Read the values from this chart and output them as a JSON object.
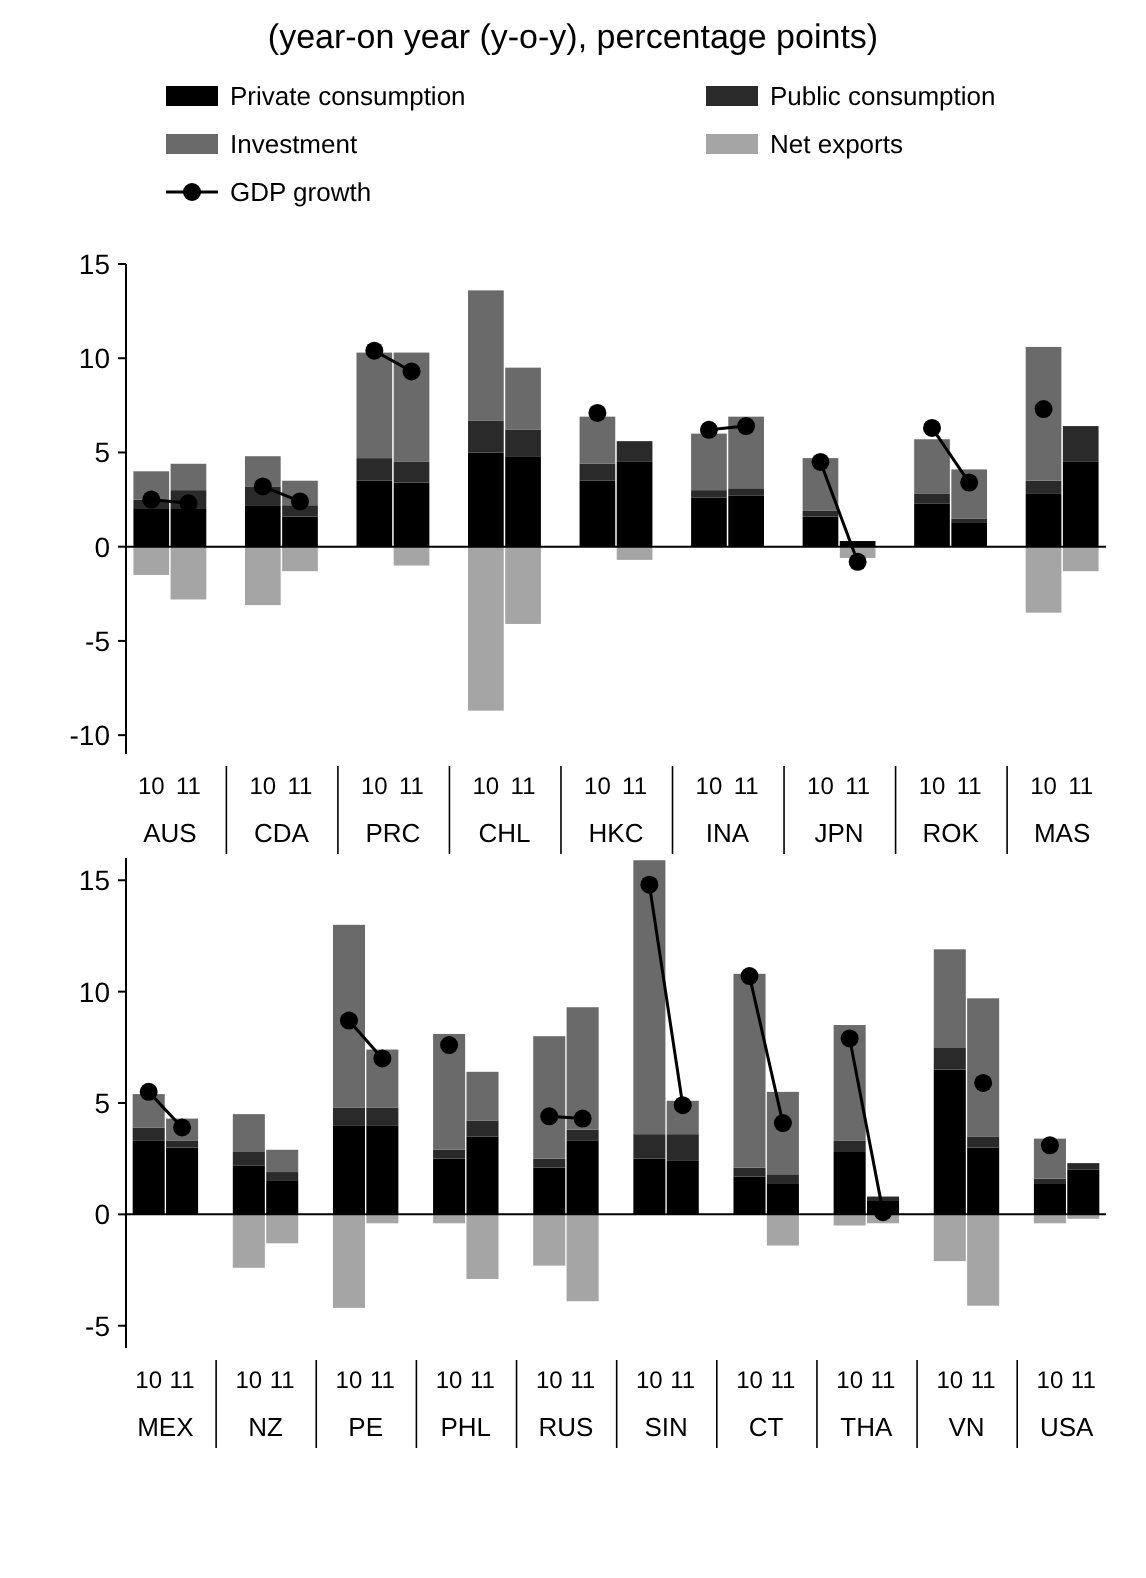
{
  "chart_data": [
    {
      "type": "bar",
      "title": "(year-on year (y-o-y), percentage points)",
      "legend": "top",
      "stacked": true,
      "ylim": [
        -11,
        15
      ],
      "yticks": [
        -10,
        -5,
        0,
        5,
        10,
        15
      ],
      "categories": [
        "10",
        "11",
        null,
        "10",
        "11",
        null,
        "10",
        "11",
        null,
        "10",
        "11",
        null,
        "10",
        "11",
        null,
        "10",
        "11",
        null,
        "10",
        "11",
        null,
        "10",
        "11",
        null,
        "10",
        "11"
      ],
      "annotations": [
        "AUS",
        "CDA",
        "PRC",
        "CHL",
        "HKC",
        "INA",
        "JPN",
        "ROK",
        "MAS"
      ],
      "series": [
        {
          "name": "Private consumption",
          "color": "#000000",
          "values": [
            2.0,
            2.0,
            null,
            2.2,
            1.6,
            null,
            3.5,
            3.4,
            null,
            5.0,
            4.8,
            null,
            3.5,
            4.5,
            null,
            2.6,
            2.7,
            null,
            1.6,
            0.3,
            null,
            2.3,
            1.3,
            null,
            2.8,
            4.5
          ]
        },
        {
          "name": "Public consumption",
          "color": "#2a2a2a",
          "values": [
            0.5,
            1.0,
            null,
            1.0,
            0.6,
            null,
            1.2,
            1.1,
            null,
            1.7,
            1.4,
            null,
            0.9,
            1.1,
            null,
            0.4,
            0.4,
            null,
            0.3,
            0,
            null,
            0.5,
            0.2,
            null,
            0.7,
            1.9
          ]
        },
        {
          "name": "Investment",
          "color": "#6a6a6a",
          "values": [
            1.5,
            1.4,
            null,
            1.6,
            1.3,
            null,
            5.6,
            5.8,
            null,
            6.9,
            3.3,
            null,
            2.5,
            0,
            null,
            3.0,
            3.8,
            null,
            2.8,
            0,
            null,
            2.9,
            2.6,
            null,
            7.1,
            0
          ]
        },
        {
          "name": "Net exports",
          "color": "#a5a5a5",
          "values": [
            -1.5,
            -2.8,
            null,
            -3.1,
            -1.3,
            null,
            0,
            -1.0,
            null,
            -8.7,
            -4.1,
            null,
            0,
            -0.7,
            null,
            0,
            0,
            null,
            0,
            -0.6,
            null,
            0,
            0,
            null,
            -3.5,
            -1.3
          ]
        },
        {
          "name": "GDP growth",
          "type": "line",
          "marker": "circle",
          "color": "#000000",
          "values": [
            2.5,
            2.3,
            null,
            3.2,
            2.4,
            null,
            10.4,
            9.3,
            null,
            null,
            null,
            null,
            7.1,
            null,
            null,
            6.2,
            6.4,
            null,
            4.5,
            -0.8,
            null,
            6.3,
            3.4,
            null,
            7.3,
            null
          ]
        }
      ]
    },
    {
      "type": "bar",
      "stacked": true,
      "ylim": [
        -6,
        16
      ],
      "yticks": [
        -5,
        0,
        5,
        10,
        15
      ],
      "categories": [
        "10",
        "11",
        null,
        "10",
        "11",
        null,
        "10",
        "11",
        null,
        "10",
        "11",
        null,
        "10",
        "11",
        null,
        "10",
        "11",
        null,
        "10",
        "11",
        null,
        "10",
        "11",
        null,
        "10",
        "11",
        null,
        "10",
        "11"
      ],
      "annotations": [
        "MEX",
        "NZ",
        "PE",
        "PHL",
        "RUS",
        "SIN",
        "CT",
        "THA",
        "VN",
        "USA"
      ],
      "series": [
        {
          "color": "#000000",
          "values": [
            3.3,
            3.0,
            null,
            2.2,
            1.5,
            null,
            4.0,
            4.0,
            null,
            2.5,
            3.5,
            null,
            2.1,
            3.3,
            null,
            2.5,
            2.4,
            null,
            1.7,
            1.4,
            null,
            2.8,
            0.6,
            null,
            6.5,
            3.0,
            null,
            1.4,
            2.0
          ]
        },
        {
          "color": "#2a2a2a",
          "values": [
            0.6,
            0.3,
            null,
            0.6,
            0.4,
            null,
            0.8,
            0.8,
            null,
            0.4,
            0.7,
            null,
            0.4,
            0.5,
            null,
            1.1,
            1.2,
            null,
            0.4,
            0.4,
            null,
            0.5,
            0.2,
            null,
            1.0,
            0.5,
            null,
            0.2,
            0.3
          ]
        },
        {
          "color": "#6a6a6a",
          "values": [
            1.5,
            1.0,
            null,
            1.7,
            1.0,
            null,
            8.2,
            2.6,
            null,
            5.2,
            2.2,
            null,
            5.5,
            5.5,
            null,
            12.3,
            1.5,
            null,
            8.7,
            3.7,
            null,
            5.2,
            0,
            null,
            4.4,
            6.2,
            null,
            1.8,
            0
          ]
        },
        {
          "color": "#a5a5a5",
          "values": [
            0,
            0,
            null,
            -2.4,
            -1.3,
            null,
            -4.2,
            -0.4,
            null,
            -0.4,
            -2.9,
            null,
            -2.3,
            -3.9,
            null,
            0,
            0,
            null,
            0,
            -1.4,
            null,
            -0.5,
            -0.4,
            null,
            -2.1,
            -4.1,
            null,
            -0.4,
            -0.2
          ]
        },
        {
          "type": "line",
          "marker": "circle",
          "color": "#000000",
          "values": [
            5.5,
            3.9,
            null,
            null,
            null,
            null,
            8.7,
            7.0,
            null,
            7.6,
            null,
            null,
            4.4,
            4.3,
            null,
            14.8,
            4.9,
            null,
            10.7,
            4.1,
            null,
            7.9,
            0.1,
            null,
            null,
            5.9,
            null,
            3.1,
            null
          ]
        }
      ]
    }
  ]
}
